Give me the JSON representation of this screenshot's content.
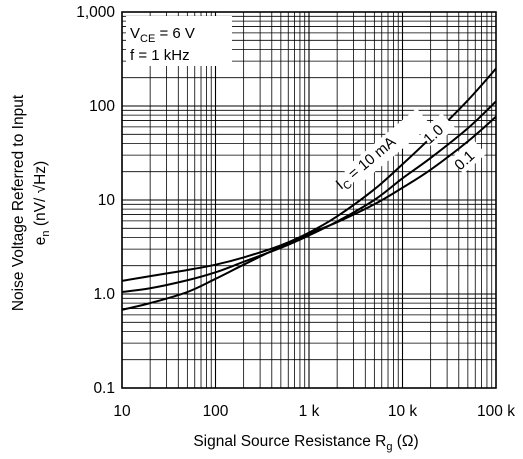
{
  "chart_data": {
    "type": "line",
    "x_scale": "log",
    "y_scale": "log",
    "xlim": [
      10,
      100000
    ],
    "ylim": [
      0.1,
      1000
    ],
    "grid": true,
    "x_ticks": [
      {
        "value": 10,
        "label": "10"
      },
      {
        "value": 100,
        "label": "100"
      },
      {
        "value": 1000,
        "label": "1 k"
      },
      {
        "value": 10000,
        "label": "10 k"
      },
      {
        "value": 100000,
        "label": "100 k"
      }
    ],
    "y_ticks": [
      {
        "value": 0.1,
        "label": "0.1"
      },
      {
        "value": 1,
        "label": "1.0"
      },
      {
        "value": 10,
        "label": "10"
      },
      {
        "value": 100,
        "label": "100"
      },
      {
        "value": 1000,
        "label": "1,000"
      }
    ],
    "xlabel": {
      "main": "Signal Source Resistance  R",
      "sub": "g",
      "unit": "  (Ω)"
    },
    "ylabel": {
      "line1": "Noise Voltage Referred to Input",
      "line2_main": "e",
      "line2_sub": "n",
      "line2_unit": "  (nV/ √Hz)"
    },
    "conditions": {
      "vce_main": "V",
      "vce_sub": "CE",
      "vce_rest": " = 6 V",
      "freq": "f = 1 kHz"
    },
    "series": [
      {
        "label_main": "I",
        "label_sub": "C",
        "label_rest": " = 10 mA",
        "x": [
          10,
          20,
          50,
          100,
          200,
          500,
          1000,
          2000,
          5000,
          10000,
          20000,
          50000,
          100000
        ],
        "y": [
          1.38,
          1.55,
          1.8,
          2.05,
          2.45,
          3.3,
          4.5,
          6.7,
          13,
          24,
          46,
          115,
          250
        ]
      },
      {
        "label_main": "1.0",
        "label_sub": "",
        "label_rest": "",
        "x": [
          10,
          20,
          50,
          100,
          200,
          500,
          1000,
          2000,
          5000,
          10000,
          20000,
          50000,
          100000
        ],
        "y": [
          1.05,
          1.15,
          1.4,
          1.7,
          2.2,
          3.1,
          4.2,
          5.9,
          10,
          17,
          28,
          58,
          112
        ]
      },
      {
        "label_main": "0.1",
        "label_sub": "",
        "label_rest": "",
        "x": [
          10,
          20,
          50,
          100,
          200,
          500,
          1000,
          2000,
          5000,
          10000,
          20000,
          50000,
          100000
        ],
        "y": [
          0.68,
          0.8,
          1.05,
          1.45,
          2.05,
          3.2,
          4.4,
          5.8,
          9,
          13.5,
          21,
          42,
          77
        ]
      }
    ]
  }
}
